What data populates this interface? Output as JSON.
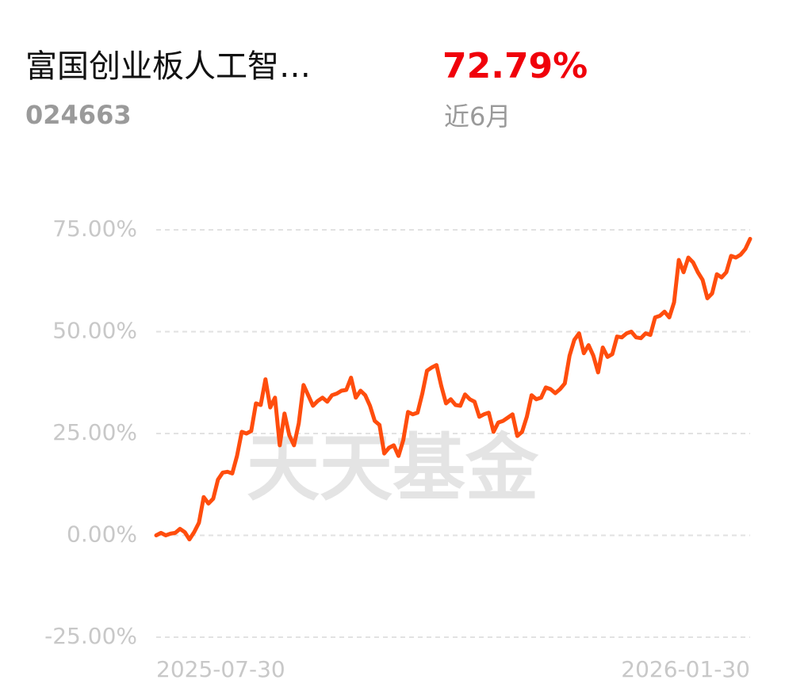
{
  "header": {
    "title": "富国创业板人工智…",
    "code": "024663",
    "return": "72.79%",
    "period": "近6月"
  },
  "chart_data": {
    "type": "line",
    "watermark": "天天基金",
    "categories": [
      "2025-07-30",
      null,
      null,
      null,
      null,
      null,
      null,
      null,
      null,
      null,
      null,
      null,
      null,
      null,
      null,
      null,
      null,
      null,
      null,
      null,
      null,
      null,
      null,
      null,
      null,
      null,
      null,
      null,
      null,
      null,
      null,
      null,
      null,
      null,
      null,
      null,
      null,
      null,
      null,
      null,
      null,
      null,
      null,
      null,
      null,
      null,
      null,
      null,
      null,
      null,
      null,
      null,
      null,
      null,
      null,
      null,
      null,
      null,
      null,
      null,
      null,
      null,
      null,
      null,
      null,
      null,
      null,
      null,
      null,
      null,
      null,
      null,
      null,
      null,
      null,
      null,
      null,
      null,
      null,
      null,
      null,
      null,
      null,
      null,
      null,
      null,
      null,
      null,
      null,
      null,
      null,
      null,
      null,
      null,
      null,
      null,
      null,
      null,
      null,
      null,
      null,
      null,
      null,
      null,
      null,
      null,
      null,
      null,
      null,
      null,
      null,
      null,
      null,
      null,
      null,
      null,
      null,
      null,
      null,
      null,
      null,
      null,
      null,
      null,
      null,
      "2026-01-30"
    ],
    "series": [
      {
        "color": "#ff4d0d",
        "values": [
          0,
          0.6,
          0,
          0.4,
          0.6,
          1.6,
          0.8,
          -1.0,
          0.8,
          3.1,
          9.4,
          7.8,
          9.0,
          13.7,
          15.4,
          15.6,
          15.2,
          19.5,
          25.4,
          25,
          25.6,
          32.4,
          32,
          38.3,
          31.4,
          33.8,
          22.1,
          29.9,
          24.6,
          22.1,
          27.5,
          36.9,
          34.4,
          31.8,
          33,
          33.8,
          32.8,
          34.4,
          34.8,
          35.5,
          35.7,
          38.7,
          33.8,
          35.5,
          34.4,
          31.8,
          28.1,
          27.1,
          20.1,
          21.5,
          22.1,
          19.5,
          23.4,
          30.3,
          29.7,
          30.1,
          34.8,
          40.4,
          41.2,
          41.8,
          36.7,
          32.4,
          33.4,
          32,
          31.8,
          34.6,
          33.4,
          32.8,
          29.1,
          29.7,
          30.1,
          25.4,
          27.7,
          28.1,
          28.9,
          29.7,
          24.4,
          25.4,
          29.1,
          34.4,
          33.4,
          33.8,
          36.3,
          35.9,
          34.9,
          35.9,
          37.3,
          44.1,
          48,
          49.6,
          44.7,
          46.7,
          44.1,
          40,
          46.1,
          43.8,
          44.5,
          48.8,
          48.6,
          49.6,
          50,
          48.6,
          48.4,
          49.6,
          49.2,
          53.5,
          53.9,
          54.9,
          53.5,
          57.2,
          67.6,
          64.6,
          68.2,
          67,
          64.6,
          62.7,
          58.2,
          59.4,
          64.1,
          63.3,
          64.6,
          68.6,
          68.2,
          68.9,
          70.3,
          72.79
        ]
      }
    ],
    "ylim": [
      -25,
      75
    ],
    "yticks": [
      {
        "value": -25,
        "label": "-25.00%"
      },
      {
        "value": 0,
        "label": "0.00%"
      },
      {
        "value": 25,
        "label": "25.00%"
      },
      {
        "value": 50,
        "label": "50.00%"
      },
      {
        "value": 75,
        "label": "75.00%"
      }
    ],
    "grid": true
  }
}
